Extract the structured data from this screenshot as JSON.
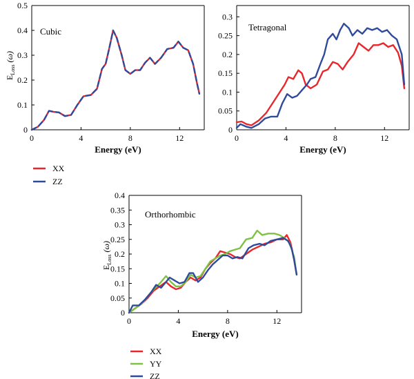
{
  "colors": {
    "XX": "#e8262b",
    "YY": "#7dc242",
    "ZZ": "#2f4a9b",
    "axis": "#000000"
  },
  "chart_data": [
    {
      "type": "line",
      "annotation": "Cubic",
      "xlabel": "Energy (eV)",
      "ylabel": {
        "main": "E",
        "sub": "Loss",
        "tail": " (ω)"
      },
      "xlim": [
        0,
        14
      ],
      "ylim": [
        0,
        0.5
      ],
      "xticks": [
        0,
        4,
        8,
        12
      ],
      "yticks": [
        0,
        0.1,
        0.2,
        0.3,
        0.4,
        0.5
      ],
      "ytick_labels": [
        "0",
        "0.1",
        "0.2",
        "0.3",
        "0.4",
        "0.5"
      ],
      "grid": false,
      "legend": "below",
      "legend_entries": [
        "XX",
        "ZZ"
      ],
      "series": [
        {
          "name": "XX",
          "color_key": "XX",
          "dashed": false,
          "points": [
            [
              0,
              0
            ],
            [
              0.5,
              0.012
            ],
            [
              1.0,
              0.04
            ],
            [
              1.4,
              0.076
            ],
            [
              1.8,
              0.072
            ],
            [
              2.2,
              0.07
            ],
            [
              2.7,
              0.055
            ],
            [
              3.2,
              0.06
            ],
            [
              3.7,
              0.1
            ],
            [
              4.2,
              0.135
            ],
            [
              4.8,
              0.14
            ],
            [
              5.3,
              0.165
            ],
            [
              5.7,
              0.245
            ],
            [
              6.0,
              0.265
            ],
            [
              6.3,
              0.33
            ],
            [
              6.6,
              0.4
            ],
            [
              6.9,
              0.37
            ],
            [
              7.3,
              0.3
            ],
            [
              7.6,
              0.24
            ],
            [
              8.0,
              0.225
            ],
            [
              8.4,
              0.24
            ],
            [
              8.8,
              0.24
            ],
            [
              9.2,
              0.27
            ],
            [
              9.6,
              0.29
            ],
            [
              10.0,
              0.265
            ],
            [
              10.5,
              0.29
            ],
            [
              11.0,
              0.325
            ],
            [
              11.5,
              0.33
            ],
            [
              11.9,
              0.355
            ],
            [
              12.3,
              0.33
            ],
            [
              12.7,
              0.32
            ],
            [
              13.1,
              0.265
            ],
            [
              13.4,
              0.19
            ],
            [
              13.6,
              0.145
            ]
          ]
        },
        {
          "name": "ZZ",
          "color_key": "ZZ",
          "dashed": true,
          "points": [
            [
              0,
              0
            ],
            [
              0.5,
              0.012
            ],
            [
              1.0,
              0.04
            ],
            [
              1.4,
              0.076
            ],
            [
              1.8,
              0.072
            ],
            [
              2.2,
              0.07
            ],
            [
              2.7,
              0.055
            ],
            [
              3.2,
              0.06
            ],
            [
              3.7,
              0.1
            ],
            [
              4.2,
              0.135
            ],
            [
              4.8,
              0.14
            ],
            [
              5.3,
              0.165
            ],
            [
              5.7,
              0.245
            ],
            [
              6.0,
              0.265
            ],
            [
              6.3,
              0.33
            ],
            [
              6.6,
              0.4
            ],
            [
              6.9,
              0.37
            ],
            [
              7.3,
              0.3
            ],
            [
              7.6,
              0.24
            ],
            [
              8.0,
              0.225
            ],
            [
              8.4,
              0.24
            ],
            [
              8.8,
              0.24
            ],
            [
              9.2,
              0.27
            ],
            [
              9.6,
              0.29
            ],
            [
              10.0,
              0.265
            ],
            [
              10.5,
              0.29
            ],
            [
              11.0,
              0.325
            ],
            [
              11.5,
              0.33
            ],
            [
              11.9,
              0.355
            ],
            [
              12.3,
              0.33
            ],
            [
              12.7,
              0.32
            ],
            [
              13.1,
              0.265
            ],
            [
              13.4,
              0.19
            ],
            [
              13.6,
              0.145
            ]
          ]
        }
      ]
    },
    {
      "type": "line",
      "annotation": "Tetragonal",
      "xlabel": "Energy (eV)",
      "ylabel": null,
      "xlim": [
        0,
        14
      ],
      "ylim": [
        0,
        0.33
      ],
      "xticks": [
        0,
        4,
        8,
        12
      ],
      "yticks": [
        0,
        0.05,
        0.1,
        0.15,
        0.2,
        0.25,
        0.3
      ],
      "ytick_labels": [
        "0",
        "0.05",
        "0.1",
        "0.15",
        "0.2",
        "0.25",
        "0.3"
      ],
      "grid": false,
      "legend": "none",
      "series": [
        {
          "name": "XX",
          "color_key": "XX",
          "dashed": false,
          "points": [
            [
              0,
              0.02
            ],
            [
              0.4,
              0.022
            ],
            [
              0.8,
              0.015
            ],
            [
              1.2,
              0.012
            ],
            [
              1.8,
              0.025
            ],
            [
              2.4,
              0.045
            ],
            [
              3.0,
              0.075
            ],
            [
              3.5,
              0.1
            ],
            [
              3.9,
              0.12
            ],
            [
              4.2,
              0.14
            ],
            [
              4.6,
              0.135
            ],
            [
              5.0,
              0.158
            ],
            [
              5.3,
              0.15
            ],
            [
              5.6,
              0.12
            ],
            [
              6.0,
              0.11
            ],
            [
              6.5,
              0.12
            ],
            [
              7.0,
              0.155
            ],
            [
              7.4,
              0.16
            ],
            [
              7.8,
              0.18
            ],
            [
              8.2,
              0.175
            ],
            [
              8.6,
              0.16
            ],
            [
              9.0,
              0.18
            ],
            [
              9.5,
              0.2
            ],
            [
              9.9,
              0.23
            ],
            [
              10.3,
              0.22
            ],
            [
              10.7,
              0.21
            ],
            [
              11.1,
              0.225
            ],
            [
              11.5,
              0.225
            ],
            [
              11.9,
              0.23
            ],
            [
              12.3,
              0.22
            ],
            [
              12.7,
              0.225
            ],
            [
              13.1,
              0.205
            ],
            [
              13.4,
              0.17
            ],
            [
              13.6,
              0.11
            ]
          ]
        },
        {
          "name": "ZZ",
          "color_key": "ZZ",
          "dashed": false,
          "points": [
            [
              0,
              0.005
            ],
            [
              0.3,
              0.015
            ],
            [
              0.8,
              0.008
            ],
            [
              1.2,
              0.005
            ],
            [
              1.8,
              0.015
            ],
            [
              2.3,
              0.03
            ],
            [
              2.8,
              0.035
            ],
            [
              3.3,
              0.035
            ],
            [
              3.7,
              0.07
            ],
            [
              4.1,
              0.095
            ],
            [
              4.5,
              0.085
            ],
            [
              4.9,
              0.09
            ],
            [
              5.3,
              0.105
            ],
            [
              5.7,
              0.12
            ],
            [
              6.0,
              0.135
            ],
            [
              6.4,
              0.14
            ],
            [
              6.8,
              0.175
            ],
            [
              7.1,
              0.2
            ],
            [
              7.4,
              0.24
            ],
            [
              7.8,
              0.255
            ],
            [
              8.1,
              0.24
            ],
            [
              8.4,
              0.265
            ],
            [
              8.7,
              0.282
            ],
            [
              9.1,
              0.27
            ],
            [
              9.4,
              0.25
            ],
            [
              9.8,
              0.265
            ],
            [
              10.2,
              0.255
            ],
            [
              10.6,
              0.27
            ],
            [
              11.0,
              0.265
            ],
            [
              11.4,
              0.27
            ],
            [
              11.8,
              0.26
            ],
            [
              12.2,
              0.265
            ],
            [
              12.6,
              0.25
            ],
            [
              13.0,
              0.24
            ],
            [
              13.4,
              0.2
            ],
            [
              13.6,
              0.12
            ]
          ]
        }
      ]
    },
    {
      "type": "line",
      "annotation": "Orthorhombic",
      "xlabel": "Energy (eV)",
      "ylabel": {
        "main": "E",
        "sub": "Loss",
        "tail": " (ω)"
      },
      "xlim": [
        0,
        14
      ],
      "ylim": [
        0,
        0.4
      ],
      "xticks": [
        0,
        4,
        8,
        12
      ],
      "yticks": [
        0,
        0.05,
        0.1,
        0.15,
        0.2,
        0.25,
        0.3,
        0.35,
        0.4
      ],
      "ytick_labels": [
        "0",
        "0.05",
        "0.1",
        "0.15",
        "0.2",
        "0.25",
        "0.3",
        "0.35",
        "0.4"
      ],
      "grid": false,
      "legend": "below",
      "legend_entries": [
        "XX",
        "YY",
        "ZZ"
      ],
      "series": [
        {
          "name": "XX",
          "color_key": "XX",
          "dashed": false,
          "points": [
            [
              0,
              0
            ],
            [
              0.5,
              0.015
            ],
            [
              1.0,
              0.03
            ],
            [
              1.5,
              0.05
            ],
            [
              2.0,
              0.075
            ],
            [
              2.5,
              0.09
            ],
            [
              3.0,
              0.105
            ],
            [
              3.4,
              0.09
            ],
            [
              3.8,
              0.08
            ],
            [
              4.2,
              0.085
            ],
            [
              4.6,
              0.105
            ],
            [
              5.0,
              0.12
            ],
            [
              5.4,
              0.11
            ],
            [
              5.8,
              0.12
            ],
            [
              6.2,
              0.15
            ],
            [
              6.6,
              0.17
            ],
            [
              7.0,
              0.185
            ],
            [
              7.4,
              0.21
            ],
            [
              7.8,
              0.205
            ],
            [
              8.2,
              0.2
            ],
            [
              8.6,
              0.19
            ],
            [
              9.0,
              0.185
            ],
            [
              9.5,
              0.2
            ],
            [
              10.0,
              0.215
            ],
            [
              10.5,
              0.225
            ],
            [
              11.0,
              0.235
            ],
            [
              11.5,
              0.24
            ],
            [
              12.0,
              0.25
            ],
            [
              12.5,
              0.25
            ],
            [
              12.8,
              0.265
            ],
            [
              13.1,
              0.24
            ],
            [
              13.4,
              0.18
            ],
            [
              13.6,
              0.13
            ]
          ]
        },
        {
          "name": "YY",
          "color_key": "YY",
          "dashed": false,
          "points": [
            [
              0,
              0
            ],
            [
              0.5,
              0.015
            ],
            [
              1.0,
              0.03
            ],
            [
              1.5,
              0.055
            ],
            [
              2.0,
              0.08
            ],
            [
              2.5,
              0.1
            ],
            [
              3.0,
              0.125
            ],
            [
              3.4,
              0.105
            ],
            [
              3.8,
              0.09
            ],
            [
              4.2,
              0.09
            ],
            [
              4.6,
              0.105
            ],
            [
              5.0,
              0.13
            ],
            [
              5.4,
              0.12
            ],
            [
              5.8,
              0.125
            ],
            [
              6.2,
              0.15
            ],
            [
              6.6,
              0.175
            ],
            [
              7.0,
              0.185
            ],
            [
              7.4,
              0.195
            ],
            [
              7.8,
              0.2
            ],
            [
              8.2,
              0.21
            ],
            [
              8.6,
              0.215
            ],
            [
              9.0,
              0.22
            ],
            [
              9.5,
              0.25
            ],
            [
              10.0,
              0.255
            ],
            [
              10.4,
              0.28
            ],
            [
              10.8,
              0.265
            ],
            [
              11.3,
              0.27
            ],
            [
              11.8,
              0.27
            ],
            [
              12.2,
              0.265
            ],
            [
              12.6,
              0.255
            ],
            [
              13.0,
              0.24
            ],
            [
              13.4,
              0.19
            ],
            [
              13.6,
              0.13
            ]
          ]
        },
        {
          "name": "ZZ",
          "color_key": "ZZ",
          "dashed": false,
          "points": [
            [
              0,
              0
            ],
            [
              0.3,
              0.025
            ],
            [
              0.8,
              0.025
            ],
            [
              1.3,
              0.045
            ],
            [
              1.8,
              0.07
            ],
            [
              2.2,
              0.095
            ],
            [
              2.6,
              0.085
            ],
            [
              3.0,
              0.105
            ],
            [
              3.3,
              0.12
            ],
            [
              3.7,
              0.11
            ],
            [
              4.1,
              0.1
            ],
            [
              4.5,
              0.105
            ],
            [
              4.9,
              0.135
            ],
            [
              5.2,
              0.135
            ],
            [
              5.6,
              0.105
            ],
            [
              6.0,
              0.12
            ],
            [
              6.4,
              0.145
            ],
            [
              6.8,
              0.165
            ],
            [
              7.2,
              0.18
            ],
            [
              7.6,
              0.195
            ],
            [
              8.0,
              0.195
            ],
            [
              8.4,
              0.185
            ],
            [
              8.8,
              0.19
            ],
            [
              9.2,
              0.185
            ],
            [
              9.7,
              0.22
            ],
            [
              10.1,
              0.23
            ],
            [
              10.6,
              0.235
            ],
            [
              11.0,
              0.23
            ],
            [
              11.5,
              0.245
            ],
            [
              12.0,
              0.25
            ],
            [
              12.5,
              0.255
            ],
            [
              12.9,
              0.245
            ],
            [
              13.2,
              0.22
            ],
            [
              13.4,
              0.18
            ],
            [
              13.6,
              0.13
            ]
          ]
        }
      ]
    }
  ]
}
